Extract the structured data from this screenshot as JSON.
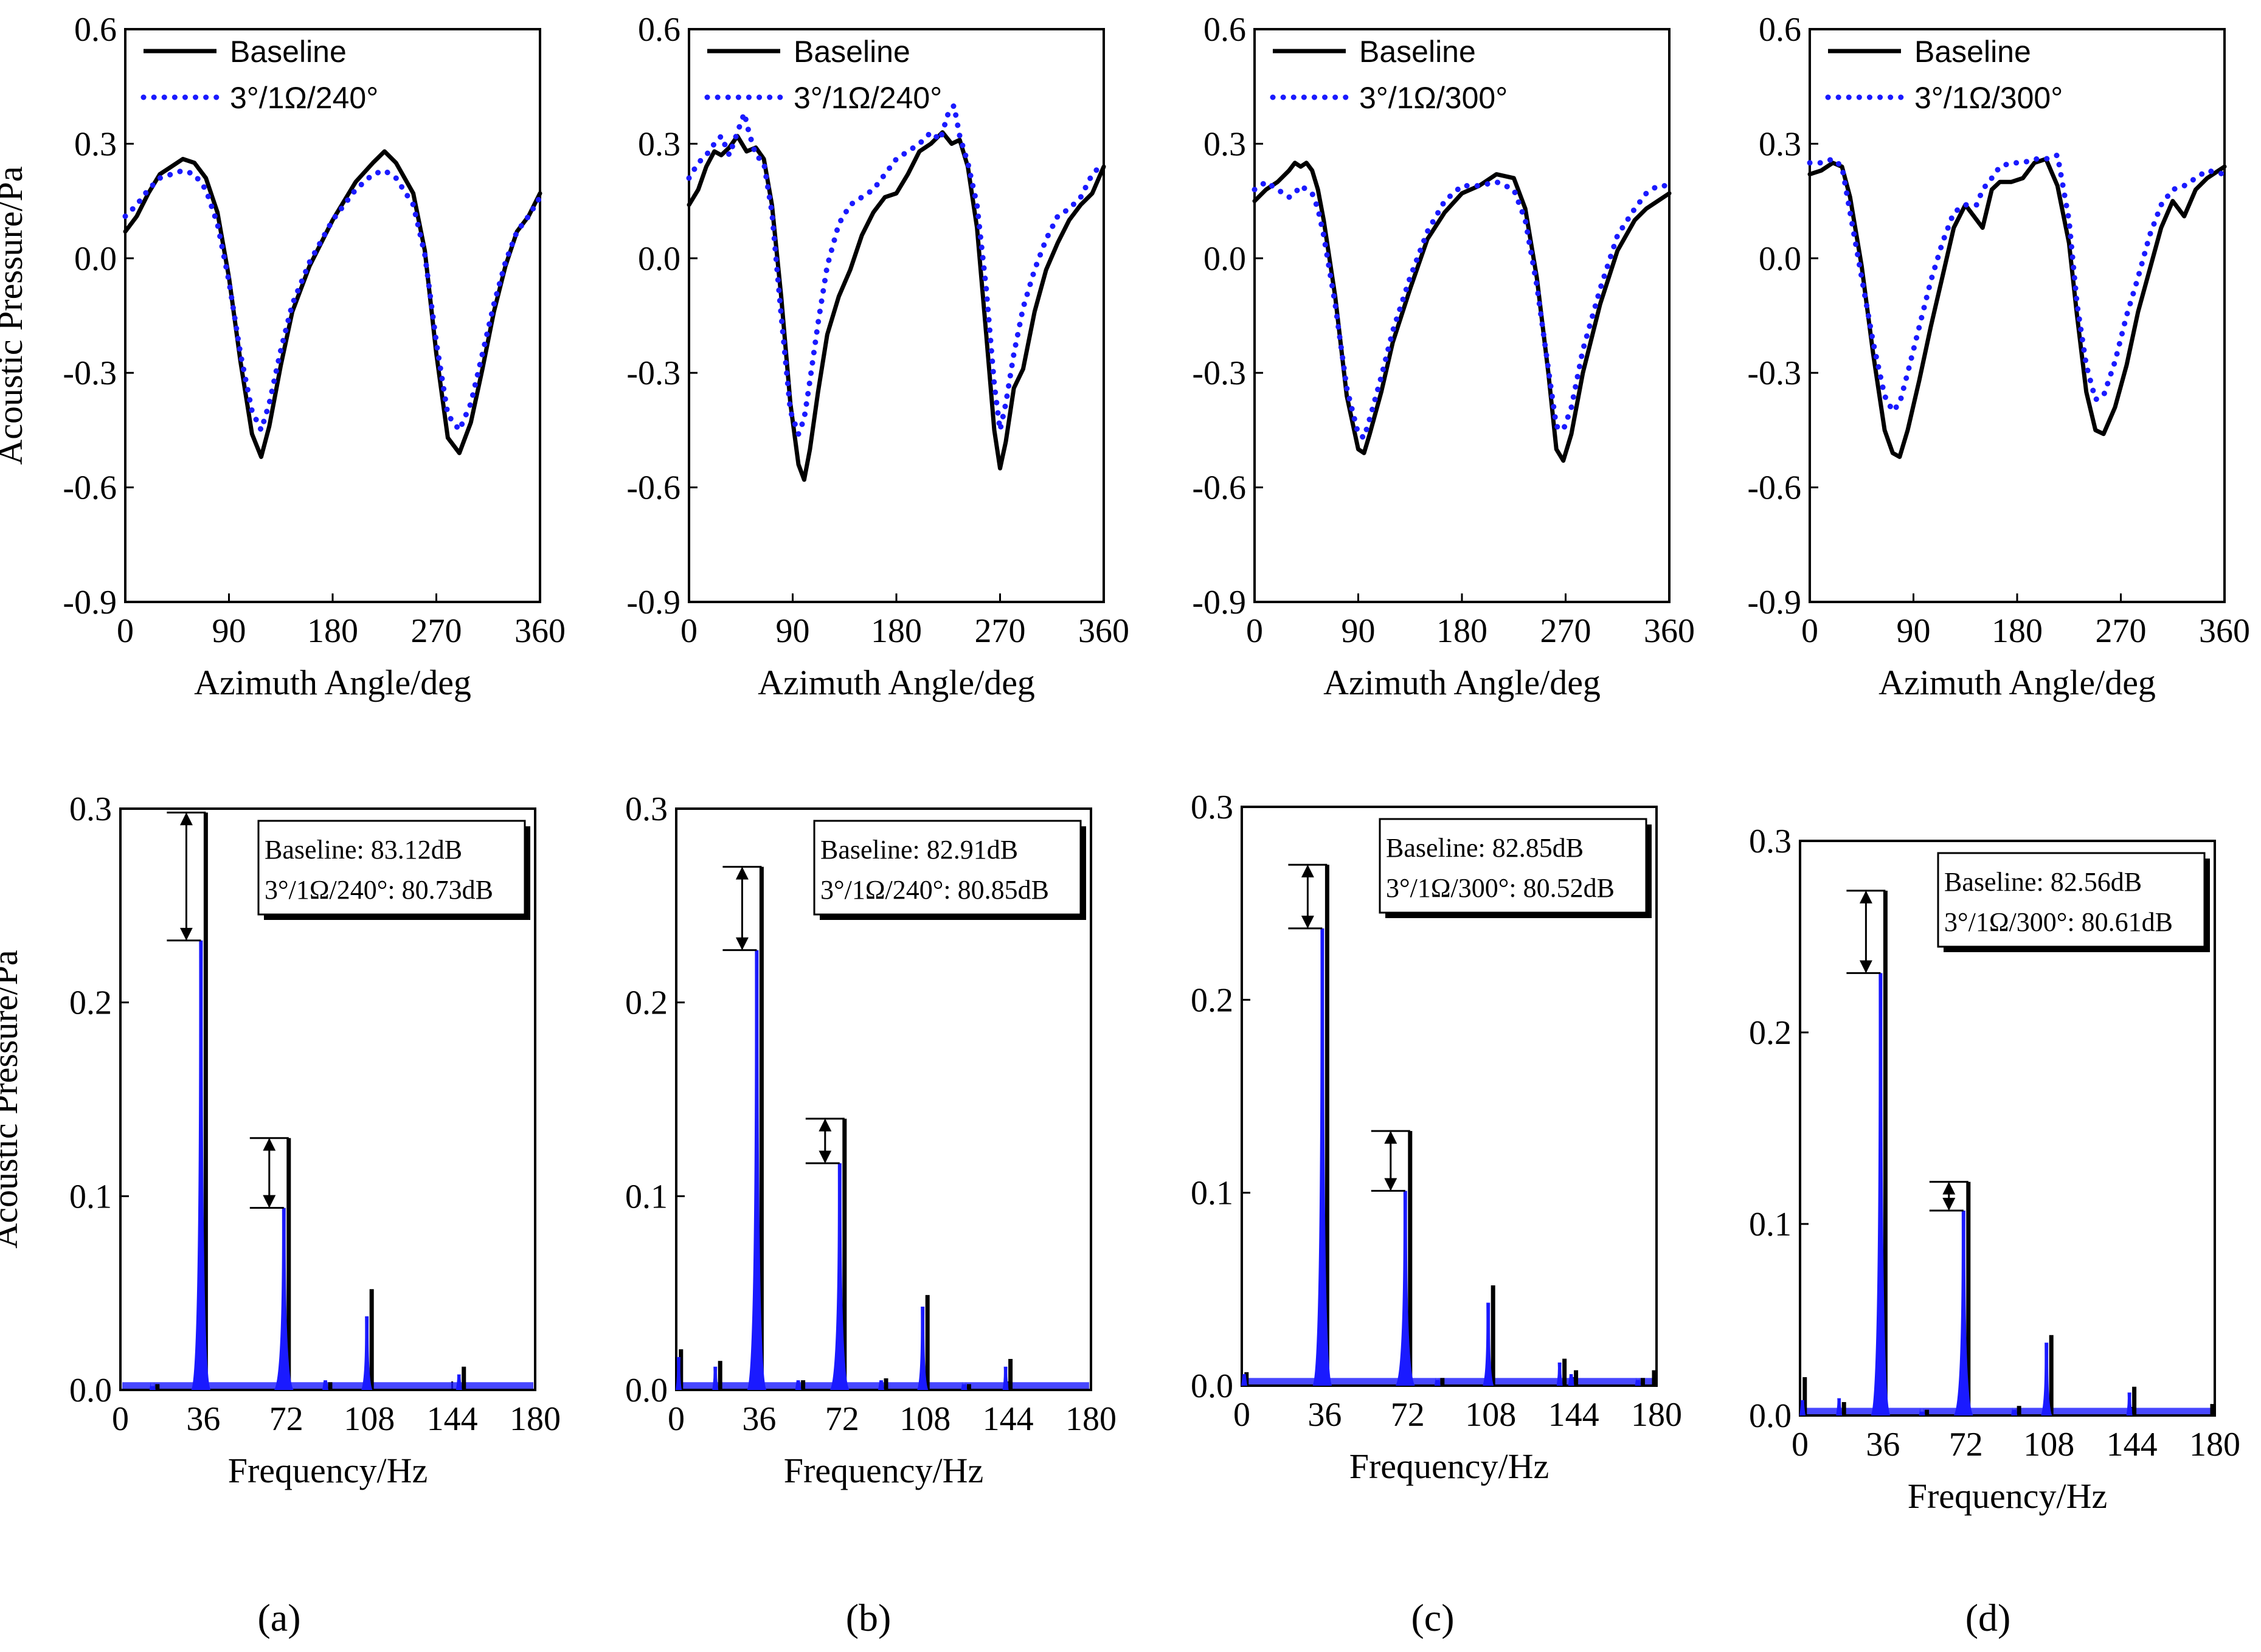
{
  "colors": {
    "baseline": "#000000",
    "modified": "#1a1aff",
    "axis": "#000000"
  },
  "panel_labels": [
    "(a)",
    "(b)",
    "(c)",
    "(d)"
  ],
  "chart_data": [
    {
      "id": "a-top",
      "type": "line",
      "xlabel": "Azimuth Angle/deg",
      "ylabel": "Acoustic Pressure/Pa",
      "xlim": [
        0,
        360
      ],
      "ylim": [
        -0.9,
        0.6
      ],
      "xticks": [
        0,
        90,
        180,
        270,
        360
      ],
      "yticks": [
        -0.9,
        -0.6,
        -0.3,
        0.0,
        0.3,
        0.6
      ],
      "legend": [
        "Baseline",
        "3°/1Ω/240°"
      ],
      "series": [
        {
          "name": "Baseline",
          "style": "solid",
          "x": [
            0,
            10,
            20,
            30,
            40,
            50,
            60,
            70,
            80,
            90,
            100,
            110,
            118,
            125,
            135,
            145,
            160,
            180,
            200,
            215,
            225,
            235,
            250,
            260,
            270,
            280,
            290,
            300,
            310,
            320,
            330,
            340,
            350,
            360
          ],
          "y": [
            0.07,
            0.11,
            0.17,
            0.22,
            0.24,
            0.26,
            0.25,
            0.21,
            0.12,
            -0.05,
            -0.27,
            -0.46,
            -0.52,
            -0.44,
            -0.28,
            -0.14,
            -0.02,
            0.1,
            0.2,
            0.25,
            0.28,
            0.25,
            0.17,
            0.02,
            -0.25,
            -0.47,
            -0.51,
            -0.43,
            -0.29,
            -0.14,
            -0.02,
            0.07,
            0.11,
            0.17
          ]
        },
        {
          "name": "3°/1Ω/240°",
          "style": "dotted",
          "x": [
            0,
            10,
            20,
            30,
            40,
            50,
            60,
            70,
            80,
            90,
            100,
            110,
            118,
            125,
            135,
            145,
            160,
            180,
            200,
            215,
            225,
            235,
            250,
            260,
            270,
            280,
            290,
            300,
            310,
            320,
            330,
            340,
            350,
            360
          ],
          "y": [
            0.11,
            0.14,
            0.18,
            0.21,
            0.22,
            0.23,
            0.22,
            0.18,
            0.09,
            -0.06,
            -0.25,
            -0.4,
            -0.45,
            -0.38,
            -0.24,
            -0.12,
            -0.01,
            0.1,
            0.18,
            0.22,
            0.23,
            0.21,
            0.14,
            0.01,
            -0.22,
            -0.41,
            -0.45,
            -0.38,
            -0.25,
            -0.12,
            -0.01,
            0.07,
            0.11,
            0.16
          ]
        }
      ]
    },
    {
      "id": "b-top",
      "type": "line",
      "xlabel": "Azimuth Angle/deg",
      "ylabel": "",
      "xlim": [
        0,
        360
      ],
      "ylim": [
        -0.9,
        0.6
      ],
      "xticks": [
        0,
        90,
        180,
        270,
        360
      ],
      "yticks": [
        -0.9,
        -0.6,
        -0.3,
        0.0,
        0.3,
        0.6
      ],
      "legend": [
        "Baseline",
        "3°/1Ω/240°"
      ],
      "series": [
        {
          "name": "Baseline",
          "style": "solid",
          "x": [
            0,
            8,
            15,
            22,
            28,
            35,
            42,
            50,
            58,
            65,
            72,
            80,
            88,
            95,
            100,
            105,
            112,
            120,
            130,
            140,
            150,
            160,
            170,
            180,
            190,
            200,
            210,
            220,
            228,
            235,
            242,
            250,
            258,
            265,
            270,
            275,
            282,
            290,
            300,
            310,
            320,
            330,
            340,
            350,
            360
          ],
          "y": [
            0.14,
            0.18,
            0.24,
            0.28,
            0.27,
            0.29,
            0.32,
            0.28,
            0.29,
            0.26,
            0.14,
            -0.1,
            -0.38,
            -0.54,
            -0.58,
            -0.5,
            -0.35,
            -0.2,
            -0.1,
            -0.03,
            0.06,
            0.12,
            0.16,
            0.17,
            0.22,
            0.28,
            0.3,
            0.33,
            0.3,
            0.31,
            0.24,
            0.08,
            -0.2,
            -0.45,
            -0.55,
            -0.48,
            -0.34,
            -0.29,
            -0.14,
            -0.03,
            0.04,
            0.1,
            0.14,
            0.17,
            0.24
          ]
        },
        {
          "name": "3°/1Ω/240°",
          "style": "dotted",
          "x": [
            0,
            8,
            15,
            22,
            28,
            35,
            42,
            48,
            52,
            58,
            65,
            72,
            80,
            88,
            95,
            100,
            105,
            112,
            120,
            130,
            140,
            150,
            160,
            170,
            180,
            190,
            200,
            210,
            218,
            225,
            230,
            235,
            242,
            250,
            258,
            265,
            270,
            275,
            282,
            290,
            300,
            310,
            320,
            330,
            340,
            350,
            360
          ],
          "y": [
            0.21,
            0.25,
            0.27,
            0.3,
            0.32,
            0.27,
            0.33,
            0.38,
            0.33,
            0.27,
            0.25,
            0.12,
            -0.15,
            -0.4,
            -0.46,
            -0.42,
            -0.32,
            -0.17,
            -0.02,
            0.09,
            0.14,
            0.16,
            0.18,
            0.22,
            0.26,
            0.28,
            0.3,
            0.33,
            0.31,
            0.38,
            0.4,
            0.32,
            0.25,
            0.14,
            -0.08,
            -0.33,
            -0.45,
            -0.38,
            -0.25,
            -0.13,
            -0.03,
            0.05,
            0.11,
            0.13,
            0.16,
            0.22,
            0.25
          ]
        }
      ]
    },
    {
      "id": "c-top",
      "type": "line",
      "xlabel": "Azimuth Angle/deg",
      "ylabel": "",
      "xlim": [
        0,
        360
      ],
      "ylim": [
        -0.9,
        0.6
      ],
      "xticks": [
        0,
        90,
        180,
        270,
        360
      ],
      "yticks": [
        -0.9,
        -0.6,
        -0.3,
        0.0,
        0.3,
        0.6
      ],
      "legend": [
        "Baseline",
        "3°/1Ω/300°"
      ],
      "series": [
        {
          "name": "Baseline",
          "style": "solid",
          "x": [
            0,
            10,
            20,
            30,
            35,
            40,
            45,
            50,
            55,
            60,
            70,
            80,
            90,
            95,
            100,
            110,
            120,
            135,
            150,
            165,
            180,
            195,
            210,
            225,
            235,
            245,
            255,
            262,
            268,
            275,
            285,
            300,
            315,
            330,
            340,
            350,
            360
          ],
          "y": [
            0.15,
            0.18,
            0.2,
            0.23,
            0.25,
            0.24,
            0.25,
            0.23,
            0.18,
            0.1,
            -0.1,
            -0.36,
            -0.5,
            -0.51,
            -0.46,
            -0.35,
            -0.22,
            -0.08,
            0.05,
            0.12,
            0.17,
            0.19,
            0.22,
            0.21,
            0.13,
            -0.05,
            -0.3,
            -0.5,
            -0.53,
            -0.46,
            -0.3,
            -0.12,
            0.02,
            0.1,
            0.13,
            0.15,
            0.17
          ]
        },
        {
          "name": "3°/1Ω/300°",
          "style": "dotted",
          "x": [
            0,
            10,
            20,
            30,
            35,
            40,
            45,
            50,
            55,
            60,
            70,
            80,
            90,
            95,
            100,
            110,
            120,
            135,
            150,
            165,
            180,
            195,
            210,
            225,
            235,
            245,
            255,
            262,
            268,
            275,
            285,
            300,
            315,
            330,
            340,
            350,
            360
          ],
          "y": [
            0.18,
            0.2,
            0.18,
            0.16,
            0.17,
            0.19,
            0.18,
            0.17,
            0.13,
            0.06,
            -0.12,
            -0.34,
            -0.46,
            -0.47,
            -0.42,
            -0.31,
            -0.19,
            -0.05,
            0.07,
            0.15,
            0.19,
            0.19,
            0.2,
            0.18,
            0.1,
            -0.07,
            -0.29,
            -0.44,
            -0.45,
            -0.39,
            -0.24,
            -0.08,
            0.06,
            0.13,
            0.17,
            0.19,
            0.19
          ]
        }
      ]
    },
    {
      "id": "d-top",
      "type": "line",
      "xlabel": "Azimuth Angle/deg",
      "ylabel": "",
      "xlim": [
        0,
        360
      ],
      "ylim": [
        -0.9,
        0.6
      ],
      "xticks": [
        0,
        90,
        180,
        270,
        360
      ],
      "yticks": [
        -0.9,
        -0.6,
        -0.3,
        0.0,
        0.3,
        0.6
      ],
      "legend": [
        "Baseline",
        "3°/1Ω/300°"
      ],
      "series": [
        {
          "name": "Baseline",
          "style": "solid",
          "x": [
            0,
            10,
            20,
            28,
            35,
            45,
            55,
            65,
            72,
            78,
            85,
            95,
            105,
            115,
            125,
            135,
            145,
            150,
            158,
            165,
            175,
            185,
            195,
            205,
            215,
            225,
            232,
            240,
            248,
            255,
            265,
            275,
            285,
            295,
            305,
            315,
            325,
            335,
            345,
            360
          ],
          "y": [
            0.22,
            0.23,
            0.25,
            0.24,
            0.16,
            -0.02,
            -0.25,
            -0.45,
            -0.51,
            -0.52,
            -0.45,
            -0.32,
            -0.18,
            -0.05,
            0.08,
            0.14,
            0.1,
            0.08,
            0.18,
            0.2,
            0.2,
            0.21,
            0.25,
            0.26,
            0.19,
            0.04,
            -0.15,
            -0.35,
            -0.45,
            -0.46,
            -0.39,
            -0.28,
            -0.14,
            -0.03,
            0.08,
            0.15,
            0.11,
            0.18,
            0.21,
            0.24
          ]
        },
        {
          "name": "3°/1Ω/300°",
          "style": "dotted",
          "x": [
            0,
            10,
            20,
            28,
            35,
            45,
            55,
            65,
            72,
            78,
            85,
            95,
            105,
            115,
            125,
            135,
            145,
            150,
            158,
            165,
            175,
            185,
            195,
            205,
            215,
            225,
            232,
            240,
            248,
            255,
            265,
            275,
            285,
            295,
            305,
            315,
            325,
            335,
            345,
            360
          ],
          "y": [
            0.25,
            0.25,
            0.26,
            0.24,
            0.12,
            -0.05,
            -0.22,
            -0.36,
            -0.4,
            -0.38,
            -0.3,
            -0.18,
            -0.06,
            0.04,
            0.12,
            0.14,
            0.14,
            0.18,
            0.21,
            0.24,
            0.25,
            0.25,
            0.26,
            0.26,
            0.27,
            0.1,
            -0.12,
            -0.28,
            -0.37,
            -0.36,
            -0.27,
            -0.15,
            -0.05,
            0.06,
            0.14,
            0.18,
            0.19,
            0.21,
            0.23,
            0.22
          ]
        }
      ]
    },
    {
      "id": "a-bottom",
      "type": "spectrum",
      "xlabel": "Frequency/Hz",
      "ylabel": "Acoustic Pressure/Pa",
      "xlim": [
        0,
        180
      ],
      "ylim": [
        0,
        0.3
      ],
      "xticks": [
        0,
        36,
        72,
        108,
        144,
        180
      ],
      "yticks": [
        0.0,
        0.1,
        0.2,
        0.3
      ],
      "annotation": [
        "Baseline:  83.12dB",
        "3°/1Ω/240°: 80.73dB"
      ],
      "baseline_peaks": {
        "x": [
          15,
          36,
          72,
          90,
          108,
          148
        ],
        "y": [
          0.003,
          0.298,
          0.13,
          0.004,
          0.052,
          0.012
        ]
      },
      "modified_peaks": {
        "x": [
          15,
          36,
          72,
          90,
          108,
          148
        ],
        "y": [
          0.002,
          0.232,
          0.094,
          0.005,
          0.038,
          0.008
        ]
      },
      "arrows": [
        {
          "x": 36,
          "y1": 0.232,
          "y2": 0.298
        },
        {
          "x": 72,
          "y1": 0.094,
          "y2": 0.13
        }
      ]
    },
    {
      "id": "b-bottom",
      "type": "spectrum",
      "xlabel": "Frequency/Hz",
      "ylabel": "",
      "xlim": [
        0,
        180
      ],
      "ylim": [
        0,
        0.3
      ],
      "xticks": [
        0,
        36,
        72,
        108,
        144,
        180
      ],
      "yticks": [
        0.0,
        0.1,
        0.2,
        0.3
      ],
      "annotation": [
        "Baseline:  82.91dB",
        "3°/1Ω/240°: 80.85dB"
      ],
      "baseline_peaks": {
        "x": [
          1,
          18,
          36,
          54,
          72,
          90,
          108,
          126,
          144
        ],
        "y": [
          0.021,
          0.015,
          0.27,
          0.005,
          0.14,
          0.006,
          0.049,
          0.003,
          0.016
        ]
      },
      "modified_peaks": {
        "x": [
          1,
          18,
          36,
          54,
          72,
          90,
          108,
          126,
          144
        ],
        "y": [
          0.017,
          0.012,
          0.227,
          0.005,
          0.117,
          0.005,
          0.043,
          0.003,
          0.012
        ]
      },
      "arrows": [
        {
          "x": 36,
          "y1": 0.227,
          "y2": 0.27
        },
        {
          "x": 72,
          "y1": 0.117,
          "y2": 0.14
        }
      ]
    },
    {
      "id": "c-bottom",
      "type": "spectrum",
      "xlabel": "Frequency/Hz",
      "ylabel": "",
      "xlim": [
        0,
        180
      ],
      "ylim": [
        0,
        0.3
      ],
      "xticks": [
        0,
        36,
        72,
        108,
        144,
        180
      ],
      "yticks": [
        0.0,
        0.1,
        0.2,
        0.3
      ],
      "annotation": [
        "Baseline:  82.85dB",
        "3°/1Ω/300°: 80.52dB"
      ],
      "baseline_peaks": {
        "x": [
          1,
          36,
          72,
          86,
          108,
          139,
          144,
          173,
          180
        ],
        "y": [
          0.007,
          0.27,
          0.132,
          0.004,
          0.052,
          0.014,
          0.008,
          0.004,
          0.008
        ]
      },
      "modified_peaks": {
        "x": [
          1,
          36,
          72,
          86,
          108,
          139,
          144,
          173
        ],
        "y": [
          0.006,
          0.237,
          0.101,
          0.003,
          0.043,
          0.012,
          0.006,
          0.003
        ]
      },
      "arrows": [
        {
          "x": 36,
          "y1": 0.237,
          "y2": 0.27
        },
        {
          "x": 72,
          "y1": 0.101,
          "y2": 0.132
        }
      ]
    },
    {
      "id": "d-bottom",
      "type": "spectrum",
      "xlabel": "Frequency/Hz",
      "ylabel": "",
      "xlim": [
        0,
        180
      ],
      "ylim": [
        0,
        0.3
      ],
      "xticks": [
        0,
        36,
        72,
        108,
        144,
        180
      ],
      "yticks": [
        0.0,
        0.1,
        0.2,
        0.3
      ],
      "annotation": [
        "Baseline:  82.56dB",
        "3°/1Ω/300°: 80.61dB"
      ],
      "baseline_peaks": {
        "x": [
          1,
          18,
          36,
          54,
          72,
          94,
          108,
          144,
          180
        ],
        "y": [
          0.02,
          0.007,
          0.274,
          0.003,
          0.122,
          0.005,
          0.042,
          0.015,
          0.006
        ]
      },
      "modified_peaks": {
        "x": [
          1,
          18,
          36,
          54,
          72,
          94,
          108,
          144
        ],
        "y": [
          0.008,
          0.009,
          0.231,
          0.002,
          0.107,
          0.003,
          0.038,
          0.012
        ]
      },
      "arrows": [
        {
          "x": 36,
          "y1": 0.231,
          "y2": 0.274
        },
        {
          "x": 72,
          "y1": 0.107,
          "y2": 0.122
        }
      ]
    }
  ]
}
